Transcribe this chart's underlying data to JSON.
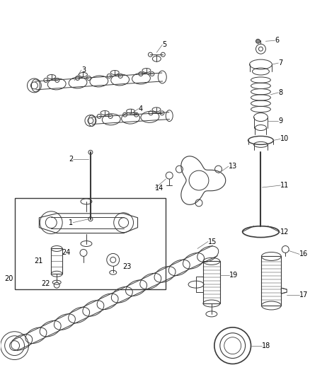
{
  "bg_color": "#ffffff",
  "fig_width": 4.38,
  "fig_height": 5.33,
  "dpi": 100,
  "lc": "#3a3a3a",
  "lw": 0.7,
  "fs": 7.0
}
